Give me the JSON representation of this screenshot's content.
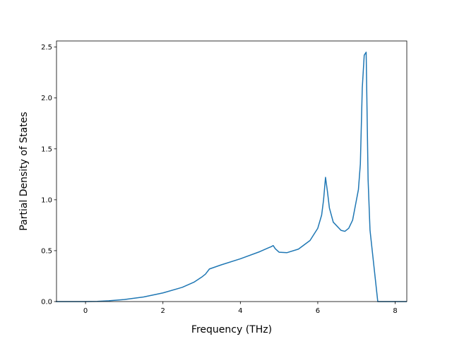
{
  "chart_data": {
    "type": "line",
    "title": "",
    "xlabel": "Frequency (THz)",
    "ylabel": "Partial Density of States",
    "xlim": [
      -0.75,
      8.3
    ],
    "ylim": [
      0.0,
      2.56
    ],
    "xticks": [
      0,
      2,
      4,
      6,
      8
    ],
    "xtick_labels": [
      "0",
      "2",
      "4",
      "6",
      "8"
    ],
    "yticks": [
      0.0,
      0.5,
      1.0,
      1.5,
      2.0,
      2.5
    ],
    "ytick_labels": [
      "0.0",
      "0.5",
      "1.0",
      "1.5",
      "2.0",
      "2.5"
    ],
    "grid": false,
    "series": [
      {
        "color": "#1f77b4",
        "x": [
          -0.77,
          -0.5,
          0.0,
          0.3,
          0.6,
          1.0,
          1.5,
          2.0,
          2.5,
          2.8,
          3.0,
          3.1,
          3.2,
          3.5,
          4.0,
          4.5,
          4.8,
          4.85,
          4.9,
          5.0,
          5.2,
          5.5,
          5.8,
          6.0,
          6.1,
          6.15,
          6.2,
          6.25,
          6.3,
          6.4,
          6.6,
          6.7,
          6.8,
          6.9,
          7.0,
          7.05,
          7.1,
          7.15,
          7.2,
          7.25,
          7.3,
          7.35,
          7.45,
          7.55,
          7.6,
          8.0,
          8.3
        ],
        "y": [
          0.0,
          0.0,
          0.0,
          0.002,
          0.008,
          0.02,
          0.045,
          0.085,
          0.14,
          0.19,
          0.24,
          0.27,
          0.32,
          0.36,
          0.42,
          0.49,
          0.54,
          0.55,
          0.52,
          0.485,
          0.48,
          0.515,
          0.6,
          0.72,
          0.85,
          1.0,
          1.22,
          1.08,
          0.92,
          0.78,
          0.7,
          0.69,
          0.72,
          0.8,
          1.0,
          1.1,
          1.35,
          2.1,
          2.42,
          2.45,
          1.2,
          0.7,
          0.35,
          0.0,
          0.0,
          0.0,
          0.0
        ]
      }
    ]
  }
}
